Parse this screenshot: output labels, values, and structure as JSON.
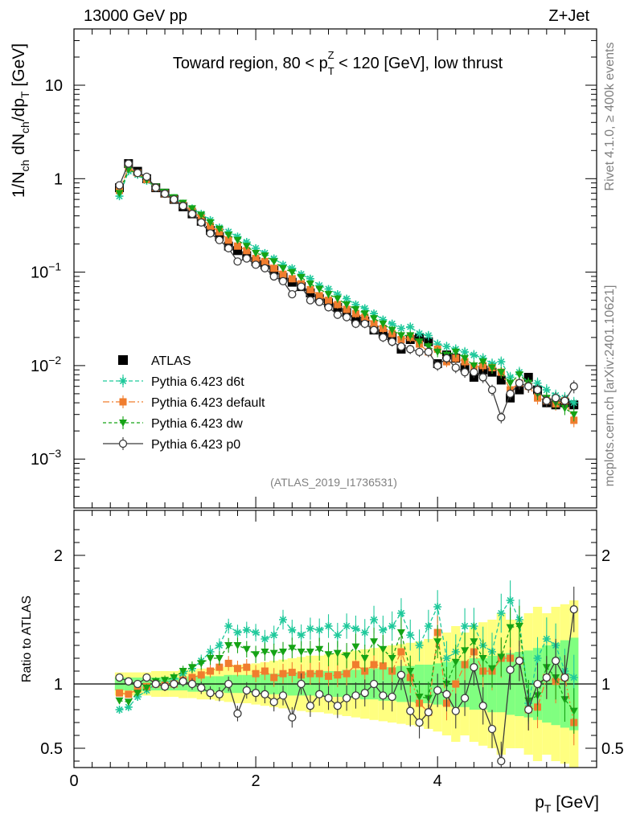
{
  "header": {
    "left": "13000 GeV pp",
    "right": "Z+Jet"
  },
  "side_labels": {
    "rivet": "Rivet 4.1.0, ≥ 400k events",
    "mcplots": "mcplots.cern.ch [arXiv:2401.10621]"
  },
  "colors": {
    "atlas": "#000000",
    "d6t": "#1fc99b",
    "default": "#f07d2e",
    "dw": "#15a315",
    "p0": "#3a3a3a",
    "band_yellow": "#ffff80",
    "band_green": "#80ff80"
  },
  "chart_data": [
    {
      "type": "scatter",
      "title": "Toward region, 80 < p_T^Z < 120 [GeV], low thrust",
      "title_parts": {
        "prefix": "Toward region, 80 < p",
        "sub": "T",
        "sup": "Z",
        "suffix": " < 120 [GeV], low thrust"
      },
      "analysis_tag": "(ATLAS_2019_I1736531)",
      "ylabel": "1/N_ch dN_ch/dp_T [GeV]",
      "ylabel_parts": {
        "a": "1/N",
        "a_sub": "ch",
        "b": " dN",
        "b_sub": "ch",
        "c": "/dp",
        "c_sub": "T",
        "d": " [GeV]"
      },
      "yscale": "log",
      "ylim": [
        0.0003,
        40
      ],
      "xlim": [
        0,
        5.75
      ],
      "yticks": [
        {
          "value": 10,
          "label": "10"
        },
        {
          "value": 1,
          "label": "1"
        },
        {
          "value": 0.1,
          "label": "10",
          "exp": "−1"
        },
        {
          "value": 0.01,
          "label": "10",
          "exp": "−2"
        },
        {
          "value": 0.001,
          "label": "10",
          "exp": "−3"
        }
      ],
      "legend": {
        "placement": "lower-left",
        "entries": [
          {
            "key": "atlas",
            "label": "ATLAS"
          },
          {
            "key": "d6t",
            "label": "Pythia 6.423 d6t"
          },
          {
            "key": "default",
            "label": "Pythia 6.423 default"
          },
          {
            "key": "dw",
            "label": "Pythia 6.423 dw"
          },
          {
            "key": "p0",
            "label": "Pythia 6.423 p0"
          }
        ]
      },
      "x": [
        0.5,
        0.6,
        0.7,
        0.8,
        0.9,
        1.0,
        1.1,
        1.2,
        1.3,
        1.4,
        1.5,
        1.6,
        1.7,
        1.8,
        1.9,
        2.0,
        2.1,
        2.2,
        2.3,
        2.4,
        2.5,
        2.6,
        2.7,
        2.8,
        2.9,
        3.0,
        3.1,
        3.2,
        3.3,
        3.4,
        3.5,
        3.6,
        3.7,
        3.8,
        3.9,
        4.0,
        4.1,
        4.2,
        4.3,
        4.4,
        4.5,
        4.6,
        4.7,
        4.8,
        4.9,
        5.0,
        5.1,
        5.2,
        5.3,
        5.4,
        5.5
      ],
      "series": [
        {
          "name": "ATLAS",
          "key": "atlas",
          "values": [
            0.8,
            1.45,
            1.2,
            1.0,
            0.8,
            0.7,
            0.6,
            0.5,
            0.42,
            0.35,
            0.28,
            0.24,
            0.19,
            0.17,
            0.15,
            0.13,
            0.12,
            0.105,
            0.088,
            0.078,
            0.07,
            0.06,
            0.052,
            0.047,
            0.042,
            0.037,
            0.031,
            0.03,
            0.024,
            0.022,
            0.02,
            0.015,
            0.019,
            0.02,
            0.018,
            0.0105,
            0.013,
            0.012,
            0.0095,
            0.0075,
            0.009,
            0.0085,
            0.007,
            0.0045,
            0.0055,
            0.0075,
            0.0055,
            0.004,
            0.0038,
            0.004,
            0.0038
          ]
        },
        {
          "name": "Pythia 6.423 d6t",
          "key": "d6t",
          "values": [
            0.65,
            1.2,
            1.1,
            0.95,
            0.8,
            0.7,
            0.62,
            0.54,
            0.48,
            0.42,
            0.36,
            0.3,
            0.27,
            0.24,
            0.21,
            0.18,
            0.16,
            0.14,
            0.12,
            0.11,
            0.095,
            0.085,
            0.072,
            0.066,
            0.058,
            0.052,
            0.045,
            0.041,
            0.036,
            0.031,
            0.028,
            0.025,
            0.026,
            0.022,
            0.021,
            0.017,
            0.016,
            0.015,
            0.014,
            0.013,
            0.012,
            0.0105,
            0.011,
            0.0075,
            0.0085,
            0.0065,
            0.0065,
            0.0055,
            0.0048,
            0.0045,
            0.004
          ]
        },
        {
          "name": "Pythia 6.423 default",
          "key": "default",
          "values": [
            0.75,
            1.3,
            1.15,
            0.98,
            0.8,
            0.69,
            0.6,
            0.52,
            0.45,
            0.38,
            0.31,
            0.27,
            0.22,
            0.19,
            0.17,
            0.14,
            0.13,
            0.11,
            0.095,
            0.085,
            0.075,
            0.065,
            0.056,
            0.05,
            0.045,
            0.04,
            0.036,
            0.033,
            0.028,
            0.025,
            0.022,
            0.019,
            0.02,
            0.017,
            0.014,
            0.015,
            0.011,
            0.012,
            0.011,
            0.0095,
            0.01,
            0.0095,
            0.0085,
            0.0055,
            0.0065,
            0.006,
            0.0045,
            0.0042,
            0.0039,
            0.0042,
            0.0026
          ]
        },
        {
          "name": "Pythia 6.423 dw",
          "key": "dw",
          "values": [
            0.7,
            1.25,
            1.12,
            0.97,
            0.82,
            0.72,
            0.63,
            0.55,
            0.48,
            0.41,
            0.34,
            0.29,
            0.25,
            0.22,
            0.19,
            0.16,
            0.15,
            0.13,
            0.11,
            0.1,
            0.088,
            0.075,
            0.066,
            0.058,
            0.052,
            0.045,
            0.04,
            0.036,
            0.032,
            0.028,
            0.024,
            0.021,
            0.021,
            0.018,
            0.016,
            0.014,
            0.013,
            0.014,
            0.012,
            0.01,
            0.011,
            0.0095,
            0.0085,
            0.0065,
            0.008,
            0.0065,
            0.005,
            0.0045,
            0.004,
            0.0035,
            0.003
          ]
        },
        {
          "name": "Pythia 6.423 p0",
          "key": "p0",
          "values": [
            0.85,
            1.45,
            1.15,
            1.05,
            0.8,
            0.69,
            0.6,
            0.51,
            0.42,
            0.34,
            0.26,
            0.22,
            0.18,
            0.13,
            0.14,
            0.12,
            0.11,
            0.09,
            0.08,
            0.058,
            0.07,
            0.05,
            0.048,
            0.042,
            0.035,
            0.033,
            0.028,
            0.028,
            0.024,
            0.02,
            0.018,
            0.016,
            0.015,
            0.014,
            0.014,
            0.01,
            0.012,
            0.0095,
            0.0085,
            0.0085,
            0.0075,
            0.0055,
            0.0028,
            0.005,
            0.0065,
            0.006,
            0.0055,
            0.0042,
            0.0045,
            0.0042,
            0.006
          ]
        }
      ]
    },
    {
      "type": "scatter",
      "ylabel": "Ratio to ATLAS",
      "xlabel": "p_T [GeV]",
      "xlabel_parts": {
        "a": "p",
        "a_sub": "T",
        "b": " [GeV]"
      },
      "xlim": [
        0,
        5.75
      ],
      "ylim": [
        0.35,
        2.35
      ],
      "xticks": [
        {
          "value": 0,
          "label": "0"
        },
        {
          "value": 2,
          "label": "2"
        },
        {
          "value": 4,
          "label": "4"
        }
      ],
      "yticks": [
        {
          "value": 2,
          "label": "2"
        },
        {
          "value": 1,
          "label": "1"
        },
        {
          "value": 0.5,
          "label": "0.5"
        }
      ],
      "reference_line": 1,
      "band_green_halfwidth": [
        0.05,
        0.05,
        0.05,
        0.05,
        0.05,
        0.05,
        0.05,
        0.05,
        0.06,
        0.06,
        0.06,
        0.06,
        0.07,
        0.07,
        0.07,
        0.07,
        0.08,
        0.08,
        0.08,
        0.09,
        0.09,
        0.09,
        0.1,
        0.1,
        0.1,
        0.11,
        0.11,
        0.12,
        0.12,
        0.13,
        0.13,
        0.14,
        0.14,
        0.15,
        0.15,
        0.16,
        0.17,
        0.18,
        0.18,
        0.2,
        0.2,
        0.22,
        0.22,
        0.24,
        0.25,
        0.26,
        0.28,
        0.3,
        0.32,
        0.34,
        0.36
      ],
      "band_yellow_halfwidth": [
        0.09,
        0.09,
        0.09,
        0.09,
        0.1,
        0.1,
        0.1,
        0.11,
        0.11,
        0.12,
        0.12,
        0.13,
        0.14,
        0.15,
        0.15,
        0.16,
        0.17,
        0.18,
        0.19,
        0.2,
        0.21,
        0.22,
        0.22,
        0.23,
        0.24,
        0.25,
        0.26,
        0.27,
        0.28,
        0.29,
        0.3,
        0.31,
        0.32,
        0.33,
        0.35,
        0.37,
        0.4,
        0.45,
        0.4,
        0.45,
        0.48,
        0.5,
        0.55,
        0.5,
        0.5,
        0.55,
        0.6,
        0.55,
        0.6,
        0.62,
        0.65
      ],
      "series": [
        {
          "name": "Pythia 6.423 d6t",
          "key": "d6t",
          "values": [
            0.8,
            0.82,
            0.9,
            0.95,
            1.0,
            1.0,
            1.04,
            1.08,
            1.12,
            1.18,
            1.25,
            1.3,
            1.45,
            1.4,
            1.42,
            1.4,
            1.35,
            1.38,
            1.5,
            1.42,
            1.38,
            1.43,
            1.42,
            1.45,
            1.38,
            1.45,
            1.43,
            1.4,
            1.5,
            1.42,
            1.45,
            1.55,
            1.38,
            1.3,
            1.45,
            1.6,
            1.2,
            1.25,
            1.45,
            1.45,
            1.3,
            1.25,
            1.55,
            1.65,
            1.5,
            0.85,
            1.2,
            1.35,
            1.3,
            1.1,
            1.05
          ]
        },
        {
          "name": "Pythia 6.423 default",
          "key": "default",
          "values": [
            0.93,
            0.92,
            0.96,
            0.98,
            1.0,
            0.99,
            1.0,
            1.03,
            1.05,
            1.07,
            1.1,
            1.13,
            1.16,
            1.12,
            1.13,
            1.08,
            1.1,
            1.05,
            1.08,
            1.09,
            1.07,
            1.08,
            1.08,
            1.06,
            1.07,
            1.08,
            1.15,
            1.1,
            1.15,
            1.14,
            1.1,
            1.25,
            1.05,
            0.85,
            0.78,
            1.4,
            0.85,
            1.0,
            1.15,
            1.25,
            1.1,
            1.1,
            1.2,
            1.2,
            1.18,
            0.8,
            0.82,
            1.05,
            1.02,
            1.05,
            0.7
          ]
        },
        {
          "name": "Pythia 6.423 dw",
          "key": "dw",
          "values": [
            0.87,
            0.86,
            0.93,
            0.97,
            1.02,
            1.03,
            1.05,
            1.1,
            1.13,
            1.16,
            1.2,
            1.2,
            1.3,
            1.3,
            1.27,
            1.23,
            1.25,
            1.24,
            1.25,
            1.28,
            1.25,
            1.25,
            1.27,
            1.23,
            1.24,
            1.22,
            1.29,
            1.2,
            1.33,
            1.27,
            1.2,
            1.4,
            1.1,
            0.9,
            0.89,
            1.33,
            1.0,
            1.17,
            1.26,
            1.33,
            1.2,
            1.12,
            1.21,
            1.44,
            1.45,
            0.87,
            0.91,
            1.13,
            1.05,
            0.88,
            0.79
          ]
        },
        {
          "name": "Pythia 6.423 p0",
          "key": "p0",
          "values": [
            1.05,
            1.02,
            1.0,
            1.05,
            1.0,
            0.98,
            1.0,
            1.02,
            1.0,
            0.97,
            0.93,
            0.92,
            1.0,
            0.77,
            0.95,
            0.93,
            0.92,
            0.86,
            0.91,
            0.74,
            1.0,
            0.83,
            0.92,
            0.89,
            0.83,
            0.89,
            0.91,
            0.93,
            1.0,
            0.91,
            0.9,
            1.07,
            0.79,
            0.7,
            0.78,
            0.95,
            0.92,
            0.79,
            0.89,
            1.13,
            0.83,
            0.65,
            0.4,
            1.11,
            1.18,
            0.8,
            1.0,
            1.05,
            1.18,
            1.05,
            1.58
          ]
        }
      ]
    }
  ]
}
